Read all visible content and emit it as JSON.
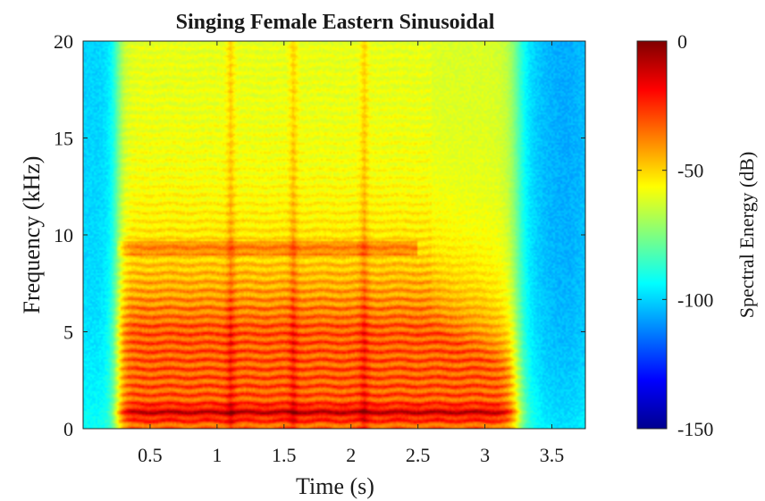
{
  "chart_data": {
    "type": "heatmap",
    "title": "Singing Female Eastern Sinusoidal",
    "xlabel": "Time (s)",
    "ylabel": "Frequency (kHz)",
    "xlim": [
      0,
      3.75
    ],
    "ylim": [
      0,
      20
    ],
    "x_ticks": [
      0.5,
      1,
      1.5,
      2,
      2.5,
      3,
      3.5
    ],
    "x_tick_labels": [
      "0.5",
      "1",
      "1.5",
      "2",
      "2.5",
      "3",
      "3.5"
    ],
    "y_ticks": [
      0,
      5,
      10,
      15,
      20
    ],
    "y_tick_labels": [
      "0",
      "5",
      "10",
      "15",
      "20"
    ],
    "colorbar": {
      "label": "Spectral Energy (dB)",
      "range": [
        -150,
        0
      ],
      "ticks": [
        0,
        -50,
        -100,
        -150
      ],
      "tick_labels": [
        "0",
        "-50",
        "-100",
        "-150"
      ],
      "colormap": "jet",
      "position": "right"
    },
    "description_of_content": {
      "voiced_region_s": [
        0.25,
        3.25
      ],
      "fundamental_khz": 0.8,
      "harmonic_spacing_khz": 0.45,
      "strong_harmonics_up_to_khz": 5.2,
      "background_level_db": -100,
      "onset_transients_s": [
        1.1,
        1.57,
        2.1
      ]
    },
    "grid": false,
    "legend": "none"
  }
}
